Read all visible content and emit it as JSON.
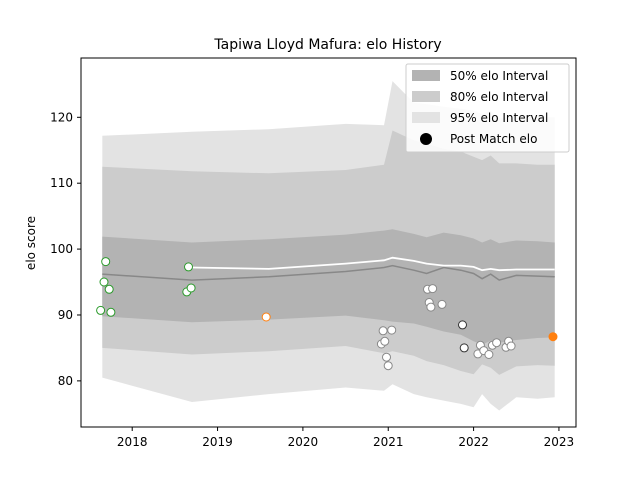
{
  "chart_data": {
    "type": "line",
    "title": "Tapiwa Lloyd Mafura: elo History",
    "xlabel": "",
    "ylabel": "elo score",
    "xlim": [
      2017.4,
      2023.2
    ],
    "ylim": [
      73,
      129
    ],
    "xticks": [
      2018,
      2019,
      2020,
      2021,
      2022,
      2023
    ],
    "yticks": [
      80,
      90,
      100,
      110,
      120
    ],
    "legend": {
      "position": "top-right",
      "entries": [
        "50% elo Interval",
        "80% elo Interval",
        "95% elo Interval",
        "Post Match elo"
      ]
    },
    "colors": {
      "band50": "#b3b3b3",
      "band80": "#cccccc",
      "band95": "#e3e3e3",
      "mean_line": "#888888",
      "mean_line_white": "#ffffff",
      "win": "#2a9a2a",
      "loss": "#888888",
      "draw": "#ff7f0e",
      "loss_dark": "#333333"
    },
    "x": [
      2017.65,
      2018.7,
      2019.6,
      2020.5,
      2020.95,
      2021.05,
      2021.3,
      2021.45,
      2021.65,
      2021.85,
      2022.0,
      2022.1,
      2022.2,
      2022.3,
      2022.5,
      2022.75,
      2022.95
    ],
    "series": [
      {
        "values": [
          96.2,
          95.3,
          95.8,
          96.6,
          97.2,
          97.5,
          96.8,
          96.3,
          97.2,
          96.8,
          96.3,
          95.5,
          96.2,
          95.3,
          96.0,
          95.9,
          95.8
        ],
        "lower50": [
          89.8,
          88.9,
          89.3,
          89.9,
          89.2,
          89.0,
          88.7,
          88.2,
          87.5,
          87.0,
          86.0,
          85.5,
          86.1,
          85.8,
          86.2,
          86.5,
          86.6
        ],
        "upper50": [
          101.9,
          101.0,
          101.5,
          102.2,
          102.8,
          103.0,
          102.3,
          101.8,
          102.5,
          102.1,
          101.6,
          101.0,
          101.5,
          100.9,
          101.3,
          101.2,
          101.0
        ],
        "lower80": [
          85.0,
          84.0,
          84.5,
          85.3,
          84.2,
          84.5,
          83.8,
          83.0,
          82.4,
          81.5,
          81.0,
          82.5,
          82.0,
          80.9,
          82.2,
          82.4,
          82.3
        ],
        "upper80": [
          112.5,
          111.8,
          111.5,
          112.0,
          112.8,
          118.0,
          116.5,
          116.0,
          115.2,
          114.8,
          114.0,
          113.5,
          114.2,
          113.0,
          113.0,
          112.8,
          112.8
        ],
        "lower95": [
          80.5,
          76.8,
          78.0,
          79.0,
          78.5,
          79.5,
          78.0,
          77.5,
          77.0,
          76.5,
          76.0,
          78.0,
          76.5,
          75.5,
          77.5,
          77.3,
          77.5
        ],
        "upper95": [
          117.2,
          117.8,
          118.2,
          119.0,
          118.8,
          125.5,
          122.2,
          122.0,
          121.6,
          121.3,
          121.0,
          120.5,
          121.0,
          119.8,
          120.2,
          120.0,
          120.0
        ]
      },
      {
        "x": [
          2018.7,
          2019.6,
          2020.5,
          2020.95,
          2021.05,
          2021.3,
          2021.45,
          2021.65,
          2021.85,
          2022.0,
          2022.1,
          2022.2,
          2022.3,
          2022.5,
          2022.75,
          2022.95
        ],
        "values": [
          97.2,
          97.0,
          97.8,
          98.3,
          98.7,
          98.2,
          97.8,
          97.5,
          97.5,
          97.3,
          96.8,
          97.0,
          96.8,
          96.9,
          96.9,
          96.9
        ]
      }
    ],
    "points": [
      {
        "x": 2017.63,
        "y": 90.7,
        "result": "win"
      },
      {
        "x": 2017.67,
        "y": 95.0,
        "result": "win"
      },
      {
        "x": 2017.69,
        "y": 98.1,
        "result": "win"
      },
      {
        "x": 2017.73,
        "y": 93.9,
        "result": "win"
      },
      {
        "x": 2017.75,
        "y": 90.4,
        "result": "win"
      },
      {
        "x": 2018.64,
        "y": 93.5,
        "result": "win"
      },
      {
        "x": 2018.66,
        "y": 97.3,
        "result": "win"
      },
      {
        "x": 2018.69,
        "y": 94.1,
        "result": "win"
      },
      {
        "x": 2019.57,
        "y": 89.7,
        "result": "draw"
      },
      {
        "x": 2020.92,
        "y": 85.6,
        "result": "loss"
      },
      {
        "x": 2020.94,
        "y": 87.6,
        "result": "loss"
      },
      {
        "x": 2020.96,
        "y": 86.0,
        "result": "loss"
      },
      {
        "x": 2020.98,
        "y": 83.6,
        "result": "loss"
      },
      {
        "x": 2021.0,
        "y": 82.3,
        "result": "loss"
      },
      {
        "x": 2021.04,
        "y": 87.7,
        "result": "loss"
      },
      {
        "x": 2021.46,
        "y": 93.9,
        "result": "loss"
      },
      {
        "x": 2021.48,
        "y": 91.9,
        "result": "loss"
      },
      {
        "x": 2021.5,
        "y": 91.2,
        "result": "loss"
      },
      {
        "x": 2021.52,
        "y": 94.0,
        "result": "loss"
      },
      {
        "x": 2021.63,
        "y": 91.6,
        "result": "loss"
      },
      {
        "x": 2021.87,
        "y": 88.5,
        "result": "loss_dark"
      },
      {
        "x": 2021.89,
        "y": 85.0,
        "result": "loss_dark"
      },
      {
        "x": 2022.05,
        "y": 84.1,
        "result": "loss"
      },
      {
        "x": 2022.08,
        "y": 85.4,
        "result": "loss"
      },
      {
        "x": 2022.12,
        "y": 84.6,
        "result": "loss"
      },
      {
        "x": 2022.18,
        "y": 84.0,
        "result": "loss"
      },
      {
        "x": 2022.22,
        "y": 85.4,
        "result": "loss"
      },
      {
        "x": 2022.27,
        "y": 85.8,
        "result": "loss"
      },
      {
        "x": 2022.38,
        "y": 85.1,
        "result": "loss"
      },
      {
        "x": 2022.41,
        "y": 86.0,
        "result": "loss"
      },
      {
        "x": 2022.44,
        "y": 85.3,
        "result": "loss"
      },
      {
        "x": 2022.93,
        "y": 86.7,
        "result": "draw"
      }
    ]
  }
}
